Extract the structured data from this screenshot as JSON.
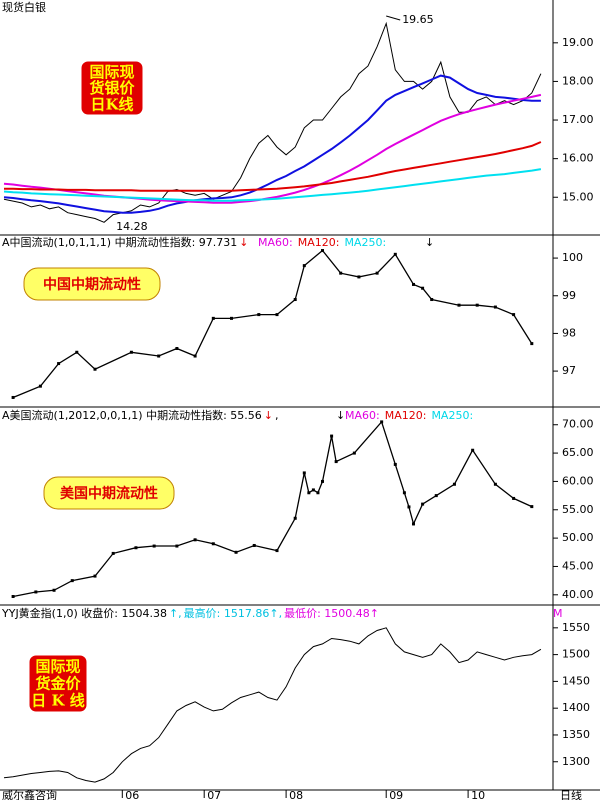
{
  "chart_data": [
    {
      "type": "line",
      "title": "现货白银",
      "badge": {
        "style": "red",
        "lines": [
          "国际现",
          "货银价",
          "日K线"
        ]
      },
      "high_label": "19.65",
      "low_label": "14.28",
      "ylim": [
        14.1,
        19.85
      ],
      "yticks": [
        {
          "value": 15,
          "label": "15.00"
        },
        {
          "value": 16,
          "label": "16.00"
        },
        {
          "value": 17,
          "label": "17.00"
        },
        {
          "value": 18,
          "label": "18.00"
        },
        {
          "value": 19,
          "label": "19.00"
        }
      ],
      "series": [
        {
          "color": "#000000",
          "width": 1,
          "values": [
            14.95,
            14.9,
            14.85,
            14.75,
            14.8,
            14.7,
            14.75,
            14.6,
            14.55,
            14.5,
            14.45,
            14.35,
            14.55,
            14.6,
            14.65,
            14.8,
            14.75,
            14.85,
            15.15,
            15.2,
            15.1,
            15.05,
            15.1,
            14.95,
            15.05,
            15.15,
            15.5,
            16.0,
            16.4,
            16.6,
            16.3,
            16.1,
            16.3,
            16.8,
            17.0,
            17.0,
            17.3,
            17.6,
            17.8,
            18.2,
            18.4,
            18.9,
            19.5,
            18.3,
            18.0,
            18.0,
            17.8,
            18.0,
            18.5,
            17.6,
            17.2,
            17.2,
            17.5,
            17.6,
            17.4,
            17.5,
            17.4,
            17.5,
            17.7,
            18.2
          ]
        },
        {
          "color": "#1010e0",
          "width": 2,
          "values": [
            15.0,
            14.98,
            14.95,
            14.92,
            14.9,
            14.87,
            14.84,
            14.8,
            14.76,
            14.72,
            14.68,
            14.64,
            14.62,
            14.6,
            14.6,
            14.62,
            14.65,
            14.7,
            14.78,
            14.84,
            14.88,
            14.92,
            14.95,
            14.97,
            14.98,
            15.0,
            15.05,
            15.12,
            15.22,
            15.33,
            15.45,
            15.55,
            15.68,
            15.8,
            15.95,
            16.1,
            16.25,
            16.42,
            16.6,
            16.8,
            17.0,
            17.25,
            17.5,
            17.65,
            17.75,
            17.85,
            17.95,
            18.05,
            18.15,
            18.1,
            17.95,
            17.8,
            17.7,
            17.65,
            17.6,
            17.58,
            17.55,
            17.52,
            17.5,
            17.5
          ]
        },
        {
          "color": "#e000e0",
          "width": 2,
          "values": [
            15.35,
            15.33,
            15.3,
            15.27,
            15.25,
            15.22,
            15.19,
            15.16,
            15.13,
            15.1,
            15.07,
            15.04,
            15.02,
            15.0,
            14.98,
            14.96,
            14.94,
            14.92,
            14.91,
            14.9,
            14.89,
            14.88,
            14.87,
            14.86,
            14.86,
            14.86,
            14.88,
            14.9,
            14.93,
            14.97,
            15.01,
            15.06,
            15.12,
            15.19,
            15.27,
            15.36,
            15.46,
            15.57,
            15.69,
            15.82,
            15.96,
            16.1,
            16.25,
            16.38,
            16.5,
            16.62,
            16.74,
            16.86,
            16.98,
            17.07,
            17.15,
            17.22,
            17.28,
            17.34,
            17.4,
            17.45,
            17.5,
            17.55,
            17.6,
            17.65
          ]
        },
        {
          "color": "#e00000",
          "width": 2,
          "values": [
            15.22,
            15.22,
            15.21,
            15.21,
            15.2,
            15.2,
            15.2,
            15.19,
            15.19,
            15.19,
            15.18,
            15.18,
            15.18,
            15.18,
            15.18,
            15.17,
            15.17,
            15.17,
            15.17,
            15.17,
            15.17,
            15.17,
            15.17,
            15.17,
            15.17,
            15.17,
            15.18,
            15.19,
            15.2,
            15.21,
            15.22,
            15.24,
            15.26,
            15.28,
            15.31,
            15.34,
            15.37,
            15.41,
            15.45,
            15.49,
            15.53,
            15.58,
            15.63,
            15.68,
            15.72,
            15.76,
            15.8,
            15.84,
            15.88,
            15.92,
            15.96,
            16.0,
            16.04,
            16.08,
            16.12,
            16.17,
            16.22,
            16.27,
            16.33,
            16.43
          ]
        },
        {
          "color": "#00e0f0",
          "width": 2,
          "values": [
            15.15,
            15.13,
            15.12,
            15.1,
            15.09,
            15.08,
            15.07,
            15.06,
            15.05,
            15.04,
            15.03,
            15.02,
            15.01,
            15.0,
            14.99,
            14.98,
            14.97,
            14.96,
            14.95,
            14.94,
            14.93,
            14.92,
            14.92,
            14.91,
            14.91,
            14.91,
            14.92,
            14.93,
            14.94,
            14.95,
            14.96,
            14.98,
            15.0,
            15.02,
            15.04,
            15.06,
            15.08,
            15.1,
            15.12,
            15.14,
            15.17,
            15.2,
            15.23,
            15.26,
            15.29,
            15.32,
            15.35,
            15.38,
            15.41,
            15.44,
            15.47,
            15.5,
            15.53,
            15.56,
            15.58,
            15.6,
            15.63,
            15.66,
            15.69,
            15.73
          ]
        }
      ]
    },
    {
      "type": "line",
      "header": [
        {
          "text": "A中国流动(1,0,1,1,1)  中期流动性指数: 97.731",
          "color": "#000000"
        },
        {
          "text": "↓",
          "color": "#e00000"
        }
      ],
      "ma_labels": [
        {
          "text": "MA60:",
          "color": "#e000e0"
        },
        {
          "text": "MA120:",
          "color": "#e00000"
        },
        {
          "text": "MA250:",
          "color": "#00d8e8"
        }
      ],
      "signal": "↓",
      "badge": {
        "style": "yellow",
        "lines": [
          "中国中期流动性"
        ]
      },
      "ylim": [
        96.1,
        100.48
      ],
      "yticks": [
        97,
        98,
        99,
        100
      ],
      "markers": true,
      "series": [
        {
          "color": "#000000",
          "width": 1.3,
          "x": [
            1,
            4,
            6,
            8,
            10,
            14,
            17,
            19,
            21,
            23,
            25,
            28,
            30,
            32,
            33,
            35,
            37,
            39,
            41,
            43,
            45,
            46,
            47,
            50,
            52,
            54,
            56,
            58
          ],
          "values": [
            96.3,
            96.6,
            97.2,
            97.5,
            97.05,
            97.5,
            97.4,
            97.6,
            97.4,
            98.4,
            98.4,
            98.5,
            98.5,
            98.9,
            99.8,
            100.2,
            99.6,
            99.5,
            99.6,
            100.1,
            99.3,
            99.2,
            98.9,
            98.75,
            98.75,
            98.7,
            98.5,
            97.73
          ]
        }
      ]
    },
    {
      "type": "line",
      "header": [
        {
          "text": "A美国流动(1,2012,0,0,1,1)  中期流动性指数: 55.56",
          "color": "#000000"
        },
        {
          "text": "↓",
          "color": "#e00000"
        },
        {
          "text": ",",
          "color": "#000000"
        }
      ],
      "ma_labels": [
        {
          "text": "MA60:",
          "color": "#e000e0"
        },
        {
          "text": "MA120:",
          "color": "#e00000"
        },
        {
          "text": "MA250:",
          "color": "#00d8e8"
        }
      ],
      "signal": "↓",
      "badge": {
        "style": "yellow",
        "lines": [
          "美国中期流动性"
        ]
      },
      "ylim": [
        38.2,
        72.6
      ],
      "yticks": [
        {
          "value": 40,
          "label": "40.00"
        },
        {
          "value": 45,
          "label": "45.00"
        },
        {
          "value": 50,
          "label": "50.00"
        },
        {
          "value": 55,
          "label": "55.00"
        },
        {
          "value": 60,
          "label": "60.00"
        },
        {
          "value": 65,
          "label": "65.00"
        },
        {
          "value": 70,
          "label": "70.00"
        }
      ],
      "markers": true,
      "series": [
        {
          "color": "#000000",
          "width": 1.3,
          "x": [
            1,
            3.5,
            5.5,
            7.5,
            10,
            12,
            14.5,
            16.5,
            19,
            21,
            23,
            25.5,
            27.5,
            30,
            32,
            33,
            33.5,
            34,
            34.5,
            35,
            36,
            36.5,
            38.5,
            41.5,
            43,
            44,
            44.5,
            45,
            46,
            47.5,
            49.5,
            51.5,
            54,
            56,
            58
          ],
          "values": [
            39.7,
            40.5,
            40.8,
            42.5,
            43.3,
            47.3,
            48.3,
            48.6,
            48.6,
            49.7,
            49.0,
            47.5,
            48.7,
            47.8,
            53.5,
            61.5,
            58,
            58.5,
            58,
            60,
            68,
            63.5,
            65,
            70.5,
            63,
            58,
            55.5,
            52.5,
            56,
            57.5,
            59.5,
            65.5,
            59.5,
            57.0,
            55.56
          ]
        }
      ]
    },
    {
      "type": "line",
      "header": [
        {
          "text": "YYJ黄金指(1,0)  收盘价: 1504.38",
          "color": "#000000"
        },
        {
          "text": "↑,",
          "color": "#00c0e0"
        },
        {
          "text": "最高价: 1517.86↑,",
          "color": "#00c0e0"
        },
        {
          "text": "最低价: 1500.48↑",
          "color": "#e000e0"
        }
      ],
      "ma_labels": [
        {
          "text": "M",
          "color": "#e000e0"
        }
      ],
      "badge": {
        "style": "red",
        "lines": [
          "国际现",
          "货金价",
          "日 K 线"
        ]
      },
      "ylim": [
        1251,
        1587
      ],
      "yticks": [
        1300,
        1350,
        1400,
        1450,
        1500,
        1550
      ],
      "categories": [
        null,
        null,
        null,
        null,
        null,
        null,
        null,
        null,
        null,
        null,
        null,
        null,
        null,
        "06",
        null,
        null,
        null,
        null,
        null,
        null,
        null,
        null,
        "07",
        null,
        null,
        null,
        null,
        null,
        null,
        null,
        null,
        "08",
        null,
        null,
        null,
        null,
        null,
        null,
        null,
        null,
        null,
        null,
        "09",
        null,
        null,
        null,
        null,
        null,
        null,
        null,
        null,
        "10",
        null,
        null,
        null,
        null,
        null,
        null,
        null,
        null
      ],
      "source": "威尔鑫咨询",
      "period_label": "日线",
      "series": [
        {
          "color": "#000000",
          "width": 1,
          "values": [
            1270,
            1272,
            1275,
            1278,
            1280,
            1282,
            1283,
            1280,
            1270,
            1265,
            1262,
            1268,
            1280,
            1300,
            1315,
            1325,
            1330,
            1345,
            1370,
            1395,
            1405,
            1412,
            1402,
            1395,
            1398,
            1410,
            1420,
            1425,
            1430,
            1420,
            1415,
            1440,
            1475,
            1500,
            1515,
            1520,
            1530,
            1528,
            1525,
            1520,
            1535,
            1545,
            1550,
            1520,
            1505,
            1500,
            1495,
            1500,
            1520,
            1505,
            1485,
            1490,
            1505,
            1500,
            1495,
            1490,
            1495,
            1498,
            1500,
            1510
          ]
        }
      ]
    }
  ]
}
